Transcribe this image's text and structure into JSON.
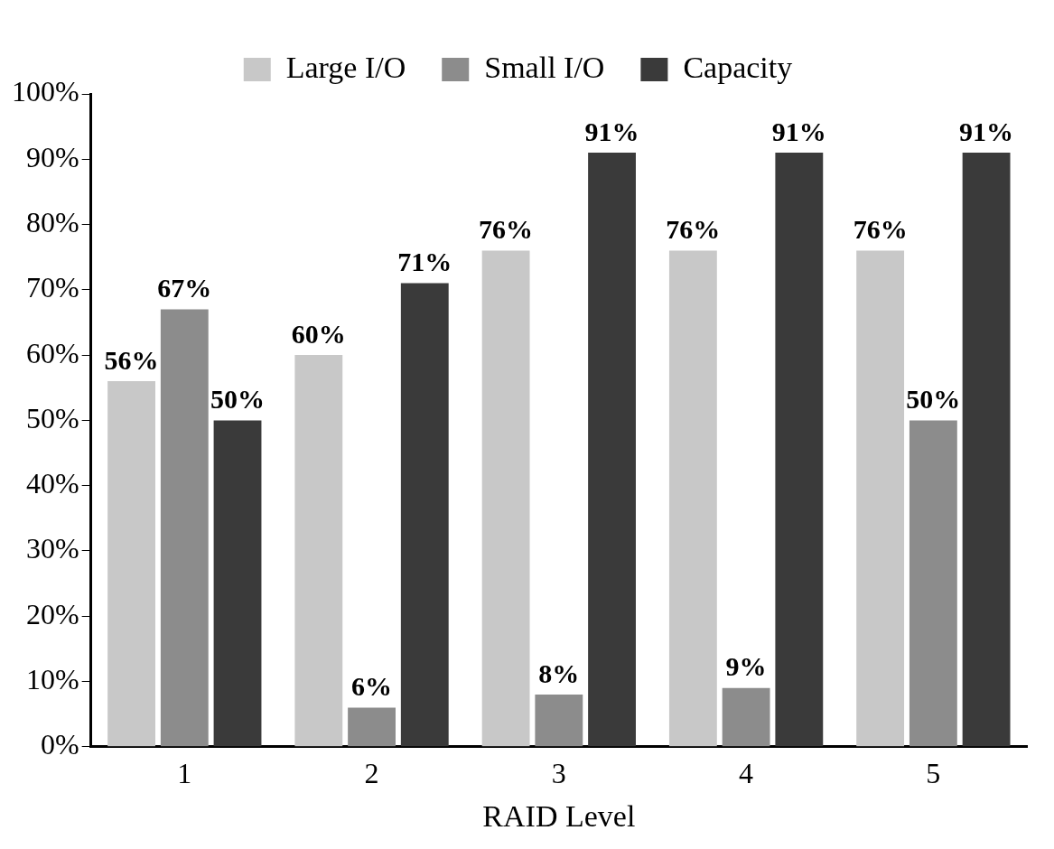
{
  "chart_data": {
    "type": "bar",
    "xlabel": "RAID Level",
    "categories": [
      "1",
      "2",
      "3",
      "4",
      "5"
    ],
    "series": [
      {
        "name": "Large I/O",
        "color": "#c8c8c8",
        "values": [
          56,
          60,
          76,
          76,
          76
        ],
        "value_labels": [
          "56%",
          "60%",
          "76%",
          "76%",
          "76%"
        ]
      },
      {
        "name": "Small I/O",
        "color": "#8c8c8c",
        "values": [
          67,
          6,
          8,
          9,
          50
        ],
        "value_labels": [
          "67%",
          "6%",
          "8%",
          "9%",
          "50%"
        ]
      },
      {
        "name": "Capacity",
        "color": "#3a3a3a",
        "values": [
          50,
          71,
          91,
          91,
          91
        ],
        "value_labels": [
          "50%",
          "71%",
          "91%",
          "91%",
          "91%"
        ]
      }
    ],
    "ylim": [
      0,
      100
    ],
    "yticks": [
      {
        "value": 0,
        "label": "0%"
      },
      {
        "value": 10,
        "label": "10%"
      },
      {
        "value": 20,
        "label": "20%"
      },
      {
        "value": 30,
        "label": "30%"
      },
      {
        "value": 40,
        "label": "40%"
      },
      {
        "value": 50,
        "label": "50%"
      },
      {
        "value": 60,
        "label": "60%"
      },
      {
        "value": 70,
        "label": "70%"
      },
      {
        "value": 80,
        "label": "80%"
      },
      {
        "value": 90,
        "label": "90%"
      },
      {
        "value": 100,
        "label": "100%"
      }
    ],
    "grid": false,
    "legend": "top"
  }
}
